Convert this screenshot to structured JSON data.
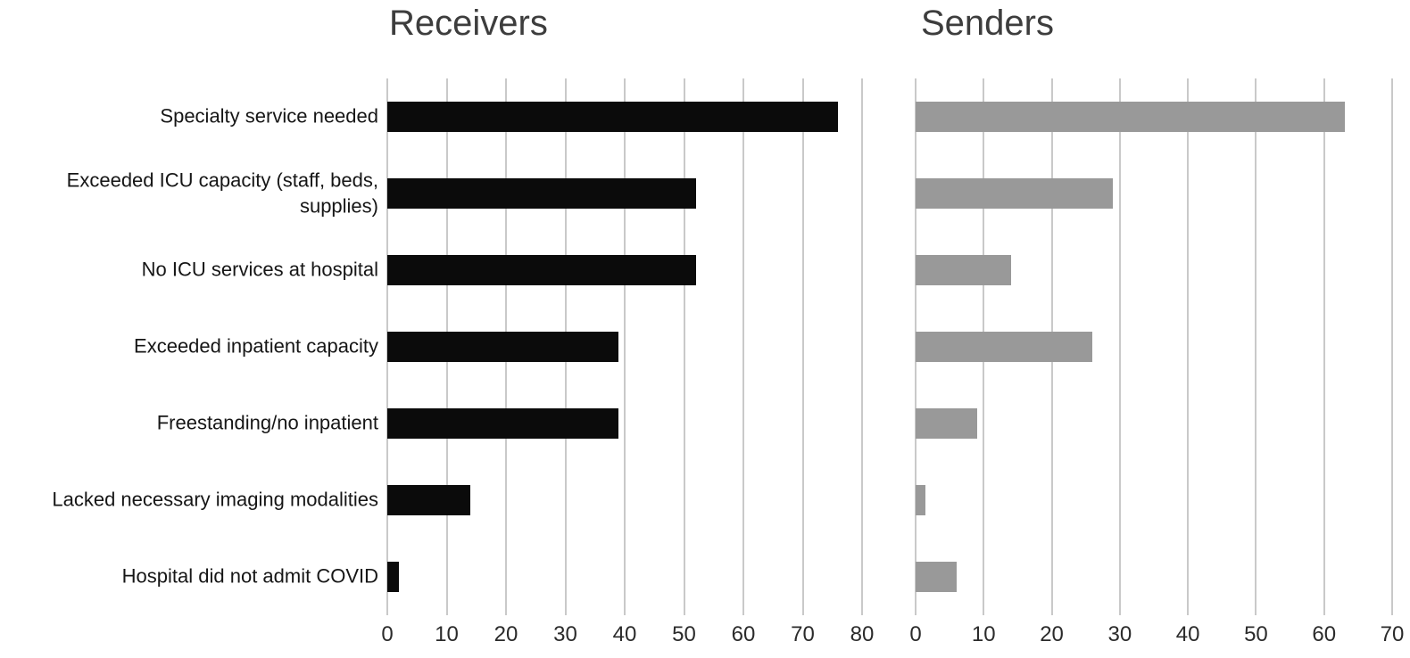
{
  "chart_data": {
    "type": "bar",
    "orientation": "horizontal",
    "grid": true,
    "legend": false,
    "categories": [
      "Specialty service needed",
      "Exceeded ICU capacity (staff, beds, supplies)",
      "No ICU services at hospital",
      "Exceeded inpatient capacity",
      "Freestanding/no inpatient",
      "Lacked necessary imaging modalities",
      "Hospital did not admit COVID"
    ],
    "series": [
      {
        "name": "Receivers",
        "values": [
          76,
          52,
          52,
          39,
          39,
          14,
          2
        ],
        "color": "#0b0b0b",
        "axis": {
          "min": 0,
          "max": 80,
          "step": 10,
          "tick_labels": [
            "0",
            "10",
            "20",
            "30",
            "40",
            "50",
            "60",
            "70",
            "80"
          ]
        }
      },
      {
        "name": "Senders",
        "values": [
          63,
          29,
          14,
          26,
          9,
          1.5,
          6
        ],
        "color": "#999999",
        "axis": {
          "min": 0,
          "max": 70,
          "step": 10,
          "tick_labels": [
            "0",
            "10",
            "20",
            "30",
            "40",
            "50",
            "60",
            "70"
          ]
        }
      }
    ],
    "colors": {
      "gridline": "#c9c9c9",
      "title_text": "#3d3d3d",
      "label_text": "#161616",
      "tick_text": "#2b2b2b"
    }
  }
}
